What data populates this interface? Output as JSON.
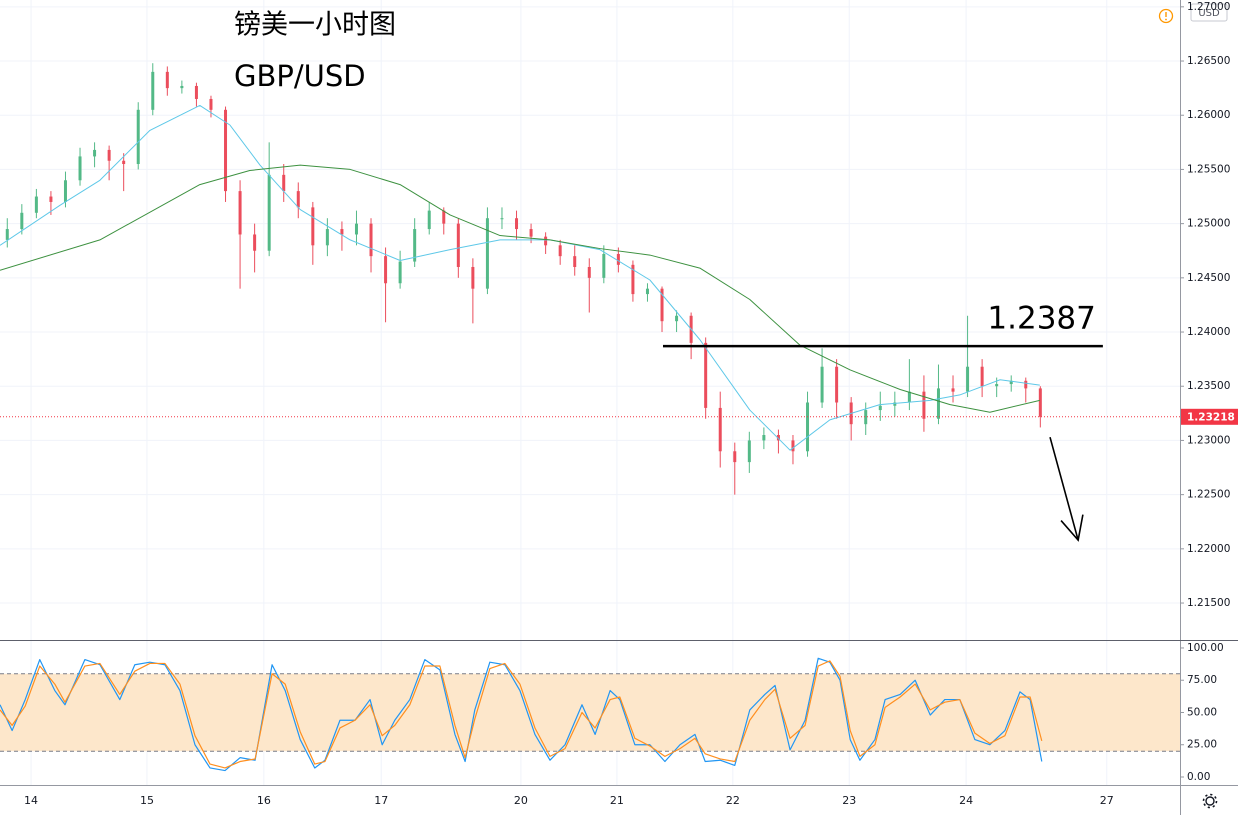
{
  "chart_data": {
    "type": "candlestick",
    "title": "镑美一小时图",
    "subtitle": "GBP/USD",
    "currency": "USD",
    "grid": true,
    "up_color": "#53b987",
    "down_color": "#eb4d5c",
    "xlim": [
      0,
      243.3
    ],
    "xticks": [
      {
        "value": 6.4,
        "label": "14"
      },
      {
        "value": 30.3,
        "label": "15"
      },
      {
        "value": 54.4,
        "label": "16"
      },
      {
        "value": 78.6,
        "label": "17"
      },
      {
        "value": 107.4,
        "label": "20"
      },
      {
        "value": 127.2,
        "label": "21"
      },
      {
        "value": 151.1,
        "label": "22"
      },
      {
        "value": 175.1,
        "label": "23"
      },
      {
        "value": 199.2,
        "label": "24"
      },
      {
        "value": 228.2,
        "label": "27"
      }
    ],
    "ylim": [
      1.21159,
      1.27063
    ],
    "yticks": [
      {
        "value": 1.215,
        "label": "1.21500"
      },
      {
        "value": 1.22,
        "label": "1.22000"
      },
      {
        "value": 1.225,
        "label": "1.22500"
      },
      {
        "value": 1.23,
        "label": "1.23000"
      },
      {
        "value": 1.235,
        "label": "1.23500"
      },
      {
        "value": 1.24,
        "label": "1.24000"
      },
      {
        "value": 1.245,
        "label": "1.24500"
      },
      {
        "value": 1.25,
        "label": "1.25000"
      },
      {
        "value": 1.255,
        "label": "1.25500"
      },
      {
        "value": 1.26,
        "label": "1.26000"
      },
      {
        "value": 1.265,
        "label": "1.26500"
      },
      {
        "value": 1.27,
        "label": "1.27000"
      }
    ],
    "x": [
      1.5,
      4.5,
      7.5,
      10.5,
      13.5,
      16.5,
      19.5,
      22.5,
      25.5,
      28.5,
      31.5,
      34.5,
      37.5,
      40.5,
      43.5,
      46.5,
      49.5,
      52.5,
      55.5,
      58.5,
      61.5,
      64.5,
      67.5,
      70.5,
      73.5,
      76.5,
      79.5,
      82.5,
      85.5,
      88.5,
      91.5,
      94.5,
      97.5,
      100.5,
      103.5,
      106.5,
      109.5,
      112.5,
      115.5,
      118.5,
      121.5,
      124.5,
      127.5,
      130.5,
      133.5,
      136.5,
      139.5,
      142.5,
      145.5,
      148.5,
      151.5,
      154.5,
      157.5,
      160.5,
      163.5,
      166.5,
      169.5,
      172.5,
      175.5,
      178.5,
      181.5,
      184.5,
      187.5,
      190.5,
      193.5,
      196.5,
      199.5,
      202.5,
      205.5,
      208.5,
      211.5,
      214.5
    ],
    "candles": [
      [
        1.2485,
        1.2505,
        1.2478,
        1.2495
      ],
      [
        1.2495,
        1.2518,
        1.249,
        1.251
      ],
      [
        1.251,
        1.2532,
        1.2505,
        1.2525
      ],
      [
        1.2525,
        1.253,
        1.2508,
        1.252
      ],
      [
        1.252,
        1.2548,
        1.2515,
        1.254
      ],
      [
        1.254,
        1.257,
        1.2535,
        1.2562
      ],
      [
        1.2562,
        1.2575,
        1.2552,
        1.2568
      ],
      [
        1.2568,
        1.2572,
        1.254,
        1.2558
      ],
      [
        1.2558,
        1.2565,
        1.253,
        1.2555
      ],
      [
        1.2555,
        1.2612,
        1.255,
        1.2605
      ],
      [
        1.2605,
        1.2648,
        1.26,
        1.264
      ],
      [
        1.264,
        1.2645,
        1.2618,
        1.2625
      ],
      [
        1.2625,
        1.2632,
        1.262,
        1.2627
      ],
      [
        1.2627,
        1.263,
        1.2608,
        1.2615
      ],
      [
        1.2615,
        1.2618,
        1.2598,
        1.2605
      ],
      [
        1.2605,
        1.2608,
        1.252,
        1.253
      ],
      [
        1.253,
        1.254,
        1.244,
        1.249
      ],
      [
        1.249,
        1.25,
        1.2455,
        1.2475
      ],
      [
        1.2475,
        1.2575,
        1.247,
        1.2545
      ],
      [
        1.2545,
        1.2555,
        1.252,
        1.253
      ],
      [
        1.253,
        1.2538,
        1.2505,
        1.2515
      ],
      [
        1.2515,
        1.252,
        1.2462,
        1.248
      ],
      [
        1.248,
        1.2505,
        1.247,
        1.2495
      ],
      [
        1.2495,
        1.2502,
        1.2475,
        1.249
      ],
      [
        1.249,
        1.2512,
        1.248,
        1.25
      ],
      [
        1.25,
        1.2505,
        1.2455,
        1.247
      ],
      [
        1.247,
        1.2478,
        1.2409,
        1.2445
      ],
      [
        1.2445,
        1.2475,
        1.244,
        1.2465
      ],
      [
        1.2465,
        1.2505,
        1.246,
        1.2495
      ],
      [
        1.2495,
        1.252,
        1.249,
        1.2512
      ],
      [
        1.2512,
        1.2515,
        1.249,
        1.25
      ],
      [
        1.25,
        1.2505,
        1.245,
        1.246
      ],
      [
        1.246,
        1.2468,
        1.2408,
        1.244
      ],
      [
        1.244,
        1.2515,
        1.2435,
        1.2505
      ],
      [
        1.2505,
        1.2515,
        1.2495,
        1.2505
      ],
      [
        1.2505,
        1.2512,
        1.2485,
        1.2495
      ],
      [
        1.2495,
        1.25,
        1.2482,
        1.2488
      ],
      [
        1.2488,
        1.2492,
        1.2472,
        1.248
      ],
      [
        1.248,
        1.2485,
        1.2462,
        1.247
      ],
      [
        1.247,
        1.248,
        1.2452,
        1.246
      ],
      [
        1.246,
        1.2468,
        1.2418,
        1.245
      ],
      [
        1.245,
        1.248,
        1.2445,
        1.2472
      ],
      [
        1.2472,
        1.2478,
        1.2455,
        1.2462
      ],
      [
        1.2462,
        1.2466,
        1.2428,
        1.2435
      ],
      [
        1.2435,
        1.2445,
        1.2428,
        1.244
      ],
      [
        1.244,
        1.2442,
        1.24,
        1.241
      ],
      [
        1.241,
        1.242,
        1.24,
        1.2415
      ],
      [
        1.2415,
        1.2418,
        1.2375,
        1.239
      ],
      [
        1.239,
        1.2395,
        1.232,
        1.233
      ],
      [
        1.233,
        1.2345,
        1.2275,
        1.229
      ],
      [
        1.229,
        1.2298,
        1.225,
        1.228
      ],
      [
        1.228,
        1.2308,
        1.227,
        1.23
      ],
      [
        1.23,
        1.2312,
        1.2292,
        1.2305
      ],
      [
        1.2305,
        1.231,
        1.2288,
        1.23
      ],
      [
        1.23,
        1.2305,
        1.2278,
        1.229
      ],
      [
        1.229,
        1.2345,
        1.2285,
        1.2335
      ],
      [
        1.2335,
        1.2385,
        1.233,
        1.2368
      ],
      [
        1.2368,
        1.2375,
        1.232,
        1.2335
      ],
      [
        1.2335,
        1.234,
        1.23,
        1.2315
      ],
      [
        1.2315,
        1.2335,
        1.2305,
        1.2328
      ],
      [
        1.2328,
        1.2345,
        1.2318,
        1.2332
      ],
      [
        1.2332,
        1.2345,
        1.2322,
        1.2335
      ],
      [
        1.2335,
        1.2375,
        1.2328,
        1.2345
      ],
      [
        1.2345,
        1.236,
        1.2308,
        1.232
      ],
      [
        1.232,
        1.237,
        1.2315,
        1.2348
      ],
      [
        1.2348,
        1.236,
        1.2335,
        1.2345
      ],
      [
        1.2345,
        1.2415,
        1.234,
        1.2368
      ],
      [
        1.2368,
        1.2375,
        1.234,
        1.235
      ],
      [
        1.235,
        1.2358,
        1.234,
        1.2352
      ],
      [
        1.2352,
        1.236,
        1.2345,
        1.2355
      ],
      [
        1.2355,
        1.2358,
        1.2335,
        1.2348
      ],
      [
        1.2348,
        1.235,
        1.2312,
        1.23218
      ]
    ],
    "ma": [
      {
        "color": "#5ec8e8",
        "x": [
          0,
          12.4,
          20.6,
          30.9,
          41.2,
          47.4,
          53.6,
          61.9,
          72.2,
          82.5,
          92.8,
          103.1,
          113.4,
          123.7,
          134.0,
          144.3,
          154.6,
          162.9,
          171.1,
          181.4,
          191.8,
          197.9,
          206.2,
          214.4
        ],
        "values": [
          1.248,
          1.2517,
          1.254,
          1.2586,
          1.2609,
          1.2591,
          1.2554,
          1.2513,
          1.2485,
          1.2466,
          1.2476,
          1.2485,
          1.2485,
          1.2476,
          1.2448,
          1.2393,
          1.2328,
          1.2291,
          1.2319,
          1.2333,
          1.2337,
          1.2342,
          1.2356,
          1.2351
        ]
      },
      {
        "color": "#3d9140",
        "x": [
          0,
          20.6,
          41.2,
          51.5,
          61.9,
          72.2,
          82.5,
          92.8,
          103.1,
          113.4,
          123.7,
          134.0,
          144.3,
          154.6,
          164.9,
          175.3,
          185.6,
          195.9,
          204.1,
          214.4
        ],
        "values": [
          1.2457,
          1.2485,
          1.2536,
          1.2549,
          1.2554,
          1.255,
          1.2536,
          1.2508,
          1.2489,
          1.2485,
          1.2477,
          1.2471,
          1.2459,
          1.243,
          1.2388,
          1.2365,
          1.2347,
          1.2333,
          1.2326,
          1.2337
        ]
      }
    ],
    "level": {
      "value": 1.2387,
      "x": [
        136.7,
        227.4
      ],
      "color": "#000000"
    },
    "arrow": {
      "x": [
        216.5,
        222.3
      ],
      "y": [
        1.2303,
        1.2208
      ],
      "color": "#000000"
    },
    "last": {
      "value": 1.23218,
      "color": "#f23645"
    },
    "oscillator": {
      "type": "line",
      "ylim": [
        -6.2,
        105.4
      ],
      "yticks": [
        {
          "value": 0,
          "label": "0.00"
        },
        {
          "value": 25,
          "label": "25.00"
        },
        {
          "value": 50,
          "label": "50.00"
        },
        {
          "value": 75,
          "label": "75.00"
        },
        {
          "value": 100,
          "label": "100.00"
        }
      ],
      "band": [
        20,
        80
      ],
      "x": [
        0,
        2.5,
        5.2,
        8.2,
        11.3,
        13.4,
        17.5,
        20.6,
        24.7,
        27.8,
        30.9,
        34.0,
        37.1,
        40.2,
        43.3,
        46.4,
        49.5,
        52.6,
        56.1,
        58.8,
        61.9,
        64.9,
        67.0,
        70.1,
        73.2,
        76.3,
        78.8,
        81.4,
        84.5,
        87.6,
        90.7,
        93.8,
        95.9,
        97.9,
        101.0,
        104.1,
        107.2,
        110.3,
        113.4,
        116.5,
        120.0,
        122.7,
        125.8,
        127.8,
        130.9,
        134.0,
        137.1,
        140.2,
        143.3,
        145.4,
        148.5,
        151.5,
        154.6,
        157.7,
        159.8,
        162.9,
        166.0,
        168.7,
        171.1,
        173.2,
        175.3,
        177.3,
        180.4,
        182.5,
        185.6,
        188.7,
        191.8,
        194.8,
        197.9,
        201.0,
        204.1,
        207.2,
        210.3,
        212.4,
        214.8
      ],
      "series": [
        {
          "color": "#2196f3",
          "values": [
            56,
            36,
            60,
            91,
            67,
            56,
            91,
            87,
            60,
            87,
            89,
            87,
            67,
            25,
            7,
            5,
            15,
            13,
            87,
            67,
            29,
            7,
            13,
            44,
            44,
            60,
            25,
            44,
            60,
            91,
            83,
            33,
            12,
            52,
            89,
            87,
            67,
            33,
            13,
            25,
            56,
            33,
            67,
            60,
            25,
            25,
            12,
            25,
            33,
            12,
            13,
            9,
            52,
            64,
            71,
            21,
            44,
            92,
            89,
            75,
            29,
            13,
            29,
            60,
            64,
            75,
            48,
            60,
            60,
            29,
            25,
            36,
            66,
            60,
            12
          ]
        },
        {
          "color": "#ff8f1f",
          "values": [
            52,
            40,
            55,
            86,
            72,
            58,
            86,
            88,
            64,
            82,
            88,
            88,
            72,
            32,
            10,
            7,
            12,
            14,
            80,
            72,
            35,
            10,
            12,
            38,
            44,
            56,
            32,
            40,
            56,
            86,
            86,
            40,
            15,
            45,
            84,
            88,
            72,
            38,
            16,
            22,
            50,
            38,
            60,
            62,
            30,
            24,
            16,
            22,
            30,
            18,
            14,
            12,
            44,
            60,
            68,
            30,
            40,
            86,
            90,
            78,
            36,
            16,
            25,
            54,
            62,
            72,
            52,
            58,
            60,
            34,
            26,
            32,
            62,
            62,
            28
          ]
        }
      ]
    }
  }
}
